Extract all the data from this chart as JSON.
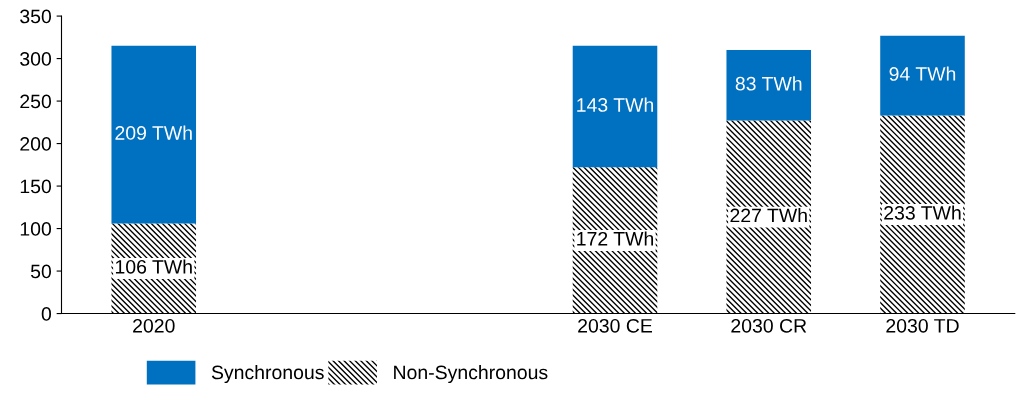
{
  "chart_data": {
    "type": "bar",
    "stacked": true,
    "categories": [
      "2020",
      null,
      null,
      "2030 CE",
      "2030 CR",
      "2030 TD"
    ],
    "series": [
      {
        "name": "Non-Synchronous",
        "color": "#000000",
        "values": [
          106,
          null,
          null,
          172,
          227,
          233
        ],
        "value_labels": [
          "106 TWh",
          null,
          null,
          "172 TWh",
          "227 TWh",
          "233 TWh"
        ]
      },
      {
        "name": "Synchronous",
        "color": "#0070c0",
        "values": [
          209,
          null,
          null,
          143,
          83,
          94
        ],
        "value_labels": [
          "209 TWh",
          null,
          null,
          "143 TWh",
          "83 TWh",
          "94 TWh"
        ]
      }
    ],
    "ylim": [
      0,
      350
    ],
    "yticks": [
      0,
      50,
      100,
      150,
      200,
      250,
      300,
      350
    ],
    "grid": false,
    "legend": "bottom"
  }
}
